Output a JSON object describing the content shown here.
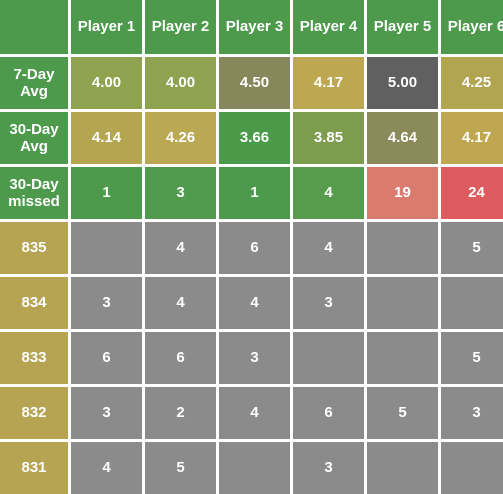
{
  "colors": {
    "header_bg": "#4d9a4d",
    "rowlabel_bg": "#b7a453",
    "grey": "#8b8b8b",
    "corner": "#4d9a4d"
  },
  "header": {
    "corner": "",
    "players": [
      "Player 1",
      "Player 2",
      "Player 3",
      "Player 4",
      "Player 5",
      "Player 6"
    ]
  },
  "summary": [
    {
      "label": "7-Day Avg",
      "values": [
        "4.00",
        "4.00",
        "4.50",
        "4.17",
        "5.00",
        "4.25"
      ],
      "colors": [
        "#8fa24f",
        "#8fa24f",
        "#86885b",
        "#bda851",
        "#606060",
        "#b1a552"
      ]
    },
    {
      "label": "30-Day Avg",
      "values": [
        "4.14",
        "4.26",
        "3.66",
        "3.85",
        "4.64",
        "4.17"
      ],
      "colors": [
        "#b4a651",
        "#bba852",
        "#4a9a4a",
        "#7d9c4e",
        "#8a8a5a",
        "#bfa752"
      ]
    },
    {
      "label": "30-Day missed",
      "values": [
        "1",
        "3",
        "1",
        "4",
        "19",
        "24"
      ],
      "colors": [
        "#4d9a4d",
        "#4f9a4d",
        "#4d9a4d",
        "#579b4d",
        "#d97c6f",
        "#de5c5f"
      ]
    }
  ],
  "rows": [
    {
      "label": "835",
      "values": [
        "",
        "4",
        "6",
        "4",
        "",
        "5"
      ]
    },
    {
      "label": "834",
      "values": [
        "3",
        "4",
        "4",
        "3",
        "",
        ""
      ]
    },
    {
      "label": "833",
      "values": [
        "6",
        "6",
        "3",
        "",
        "",
        "5"
      ]
    },
    {
      "label": "832",
      "values": [
        "3",
        "2",
        "4",
        "6",
        "5",
        "3"
      ]
    },
    {
      "label": "831",
      "values": [
        "4",
        "5",
        "",
        "3",
        "",
        ""
      ]
    }
  ]
}
